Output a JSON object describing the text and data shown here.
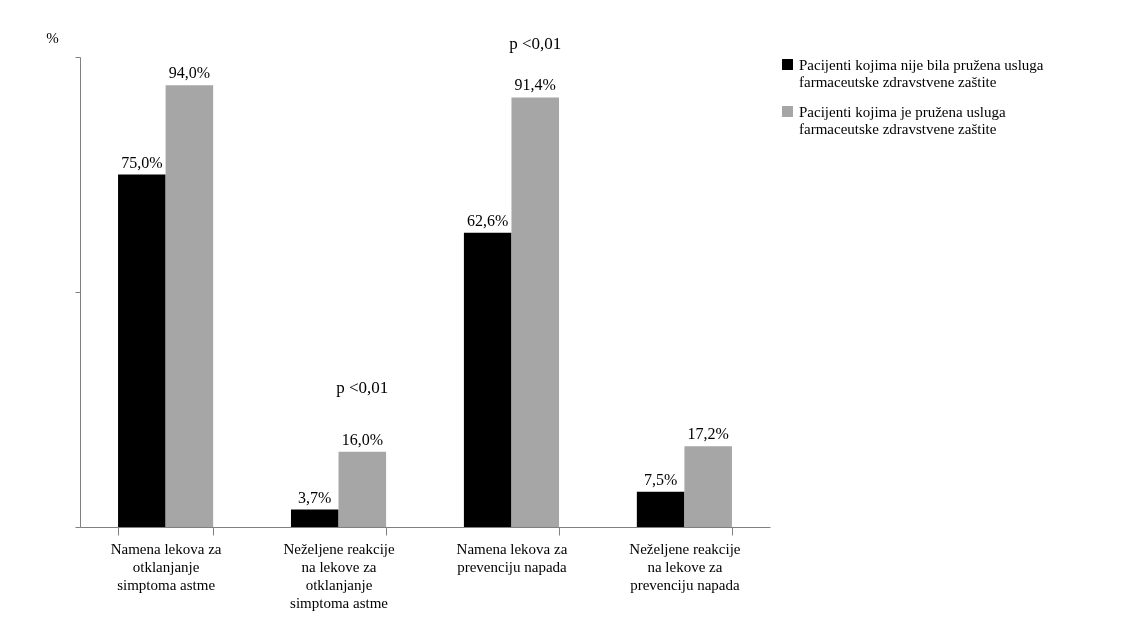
{
  "chart_data": {
    "type": "bar",
    "ylabel": "%",
    "categories": [
      "Namena lekova za otklanjanje simptoma astme",
      "Neželjene reakcije na lekove za otklanjanje simptoma astme",
      "Namena lekova za prevenciju napada",
      "Neželjene reakcije na lekove za prevenciju napada"
    ],
    "series": [
      {
        "name": "Pacijenti kojima nije bila pružena usluga farmaceutske zdravstvene zaštite",
        "color": "#000000",
        "values": [
          75.0,
          3.7,
          62.6,
          7.5
        ],
        "value_labels": [
          "75,0%",
          "3,7%",
          "62,6%",
          "7,5%"
        ]
      },
      {
        "name": "Pacijenti kojima je pružena usluga farmaceutske zdravstvene zaštite",
        "color": "#a6a6a6",
        "values": [
          94.0,
          16.0,
          91.4,
          17.2
        ],
        "value_labels": [
          "94,0%",
          "16,0%",
          "91,4%",
          "17,2%"
        ]
      }
    ],
    "ylim": [
      0,
      100
    ],
    "yticks": [
      {
        "value": 0,
        "label": null
      },
      {
        "value": 50,
        "label": null
      },
      {
        "value": 100,
        "label": null
      }
    ],
    "annotations": [
      "p <0,01",
      "p <0,01"
    ],
    "grid": false,
    "legend": "right"
  }
}
